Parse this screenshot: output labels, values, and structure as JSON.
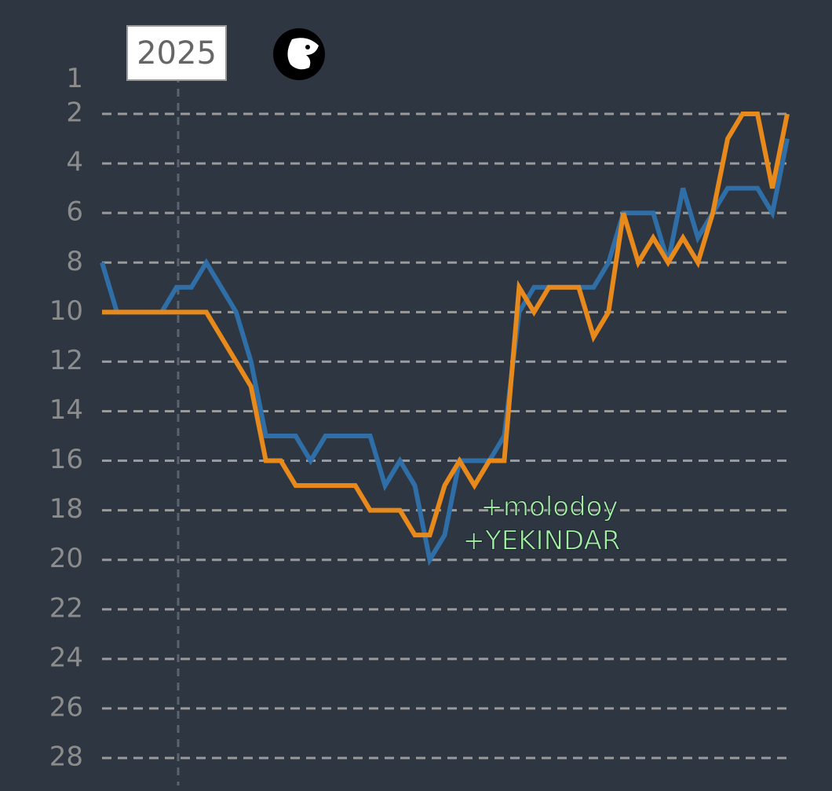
{
  "chart_data": {
    "type": "line",
    "year_marker": "2025",
    "ylim": [
      1,
      28
    ],
    "yticks": [
      1,
      2,
      4,
      6,
      8,
      10,
      12,
      14,
      16,
      18,
      20,
      22,
      24,
      26,
      28
    ],
    "inverted": true,
    "grid": true,
    "series": [
      {
        "color": "#2f6ea6",
        "values": [
          8,
          10,
          10,
          10,
          10,
          9,
          9,
          8,
          9,
          10,
          12,
          15,
          15,
          15,
          16,
          15,
          15,
          15,
          15,
          17,
          16,
          17,
          20,
          19,
          16,
          16,
          16,
          15,
          10,
          9,
          9,
          9,
          9,
          9,
          8,
          6,
          6,
          6,
          8,
          5,
          7,
          6,
          5,
          5,
          5,
          6,
          3
        ]
      },
      {
        "color": "#e8891c",
        "values": [
          10,
          10,
          10,
          10,
          10,
          10,
          10,
          10,
          11,
          12,
          13,
          16,
          16,
          17,
          17,
          17,
          17,
          17,
          18,
          18,
          18,
          19,
          19,
          17,
          16,
          17,
          16,
          16,
          9,
          10,
          9,
          9,
          9,
          11,
          10,
          6,
          8,
          7,
          8,
          7,
          8,
          6,
          3,
          2,
          2,
          5,
          2
        ]
      }
    ],
    "annotations": [
      "+molodoy",
      "+YEKINDAR"
    ]
  }
}
